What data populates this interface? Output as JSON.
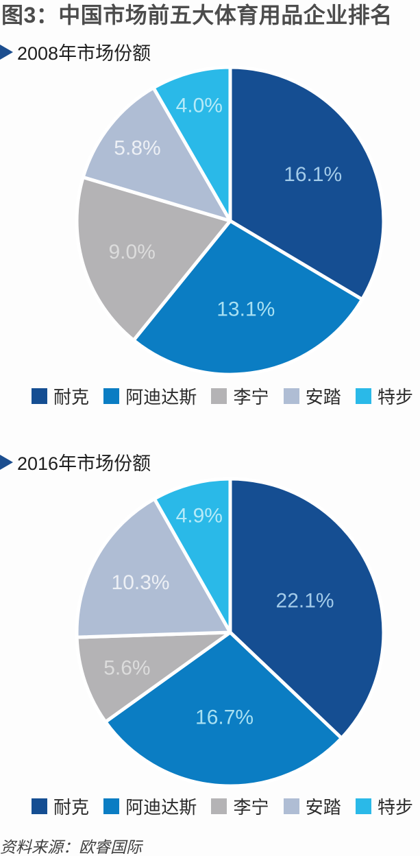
{
  "page": {
    "title": "图3：中国市场前五大体育用品企业排名",
    "source_note": "资料来源：欧睿国际",
    "background_color": "#fdfdfd",
    "title_color": "#4c4c4c",
    "bullet_color": "#1c4e8f"
  },
  "chart_data": [
    {
      "type": "pie",
      "title": "2008年市场份额",
      "categories": [
        "耐克",
        "阿迪达斯",
        "李宁",
        "安踏",
        "特步"
      ],
      "values": [
        16.1,
        13.1,
        9.0,
        5.8,
        4.0
      ],
      "labels": [
        "16.1%",
        "13.1%",
        "9.0%",
        "5.8%",
        "4.0%"
      ],
      "colors": [
        "#154e92",
        "#0b7dc3",
        "#b4b3b5",
        "#afbdd4",
        "#2ab9e8"
      ],
      "label_colors": [
        "#a3cbe9",
        "#a8e0f2",
        "#dcdcdc",
        "#edf0f5",
        "#b5eaf8"
      ],
      "layout": {
        "start_angle_deg": 0,
        "direction": "clockwise",
        "slice_border_color": "#ffffff",
        "slice_border_width": 5,
        "values_normalized_to_full_circle": true,
        "legend_position": "bottom",
        "label_radius_fractions": [
          0.62,
          0.58,
          0.67,
          0.77,
          0.78
        ]
      }
    },
    {
      "type": "pie",
      "title": "2016年市场份额",
      "categories": [
        "耐克",
        "阿迪达斯",
        "李宁",
        "安踏",
        "特步"
      ],
      "values": [
        22.1,
        16.7,
        5.6,
        10.3,
        4.9
      ],
      "labels": [
        "22.1%",
        "16.7%",
        "5.6%",
        "10.3%",
        "4.9%"
      ],
      "colors": [
        "#154e92",
        "#0b7dc3",
        "#b4b3b5",
        "#afbdd4",
        "#2ab9e8"
      ],
      "label_colors": [
        "#a3cbe9",
        "#a8e0f2",
        "#dcdcdc",
        "#edf0f5",
        "#b5eaf8"
      ],
      "layout": {
        "start_angle_deg": 0,
        "direction": "clockwise",
        "slice_border_color": "#ffffff",
        "slice_border_width": 5,
        "values_normalized_to_full_circle": true,
        "legend_position": "bottom",
        "label_radius_fractions": [
          0.53,
          0.55,
          0.71,
          0.67,
          0.79
        ]
      }
    }
  ]
}
